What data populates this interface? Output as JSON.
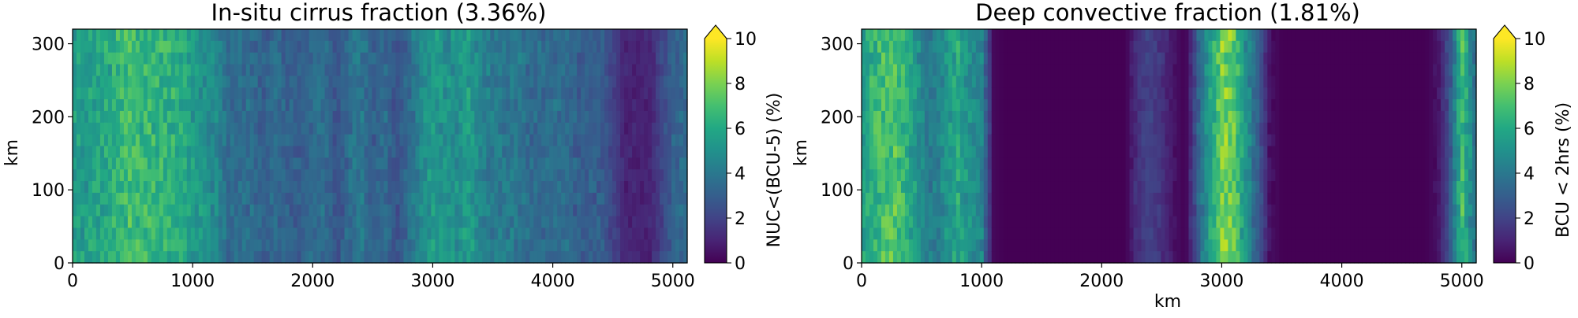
{
  "chart_data": [
    {
      "type": "heatmap",
      "title": "In-situ cirrus fraction (3.36%)",
      "xlabel": "",
      "ylabel": "km",
      "xlim": [
        0,
        5120
      ],
      "ylim": [
        0,
        320
      ],
      "xticks": [
        "0",
        "1000",
        "2000",
        "3000",
        "4000",
        "5000"
      ],
      "yticks": [
        "0",
        "100",
        "200",
        "300"
      ],
      "colorbar": {
        "label": "NUC<(BCU-5) (%)",
        "range": [
          0,
          10
        ],
        "ticks": [
          "0",
          "2",
          "4",
          "6",
          "8",
          "10"
        ],
        "extend": "max",
        "colormap": "viridis"
      },
      "column_profile": {
        "x_km": [
          0,
          100,
          200,
          300,
          400,
          500,
          600,
          700,
          800,
          900,
          1000,
          1100,
          1200,
          1300,
          1400,
          1500,
          1600,
          1700,
          1800,
          1900,
          2000,
          2100,
          2200,
          2300,
          2400,
          2500,
          2600,
          2700,
          2800,
          2900,
          3000,
          3100,
          3200,
          3300,
          3400,
          3500,
          3600,
          3700,
          3800,
          3900,
          4000,
          4100,
          4200,
          4300,
          4400,
          4500,
          4600,
          4700,
          4800,
          4900,
          5000,
          5100
        ],
        "values": [
          5.5,
          5.5,
          5.8,
          6.0,
          6.5,
          7.0,
          6.5,
          6.5,
          6.5,
          6.0,
          5.5,
          5.0,
          4.5,
          3.5,
          3.5,
          3.5,
          3.0,
          3.5,
          3.0,
          3.0,
          3.5,
          3.5,
          2.5,
          3.5,
          4.0,
          3.0,
          3.5,
          2.5,
          3.5,
          4.5,
          5.5,
          5.0,
          5.0,
          5.5,
          4.5,
          4.0,
          4.0,
          4.0,
          3.5,
          3.5,
          3.5,
          3.5,
          3.0,
          3.0,
          3.0,
          2.0,
          1.0,
          1.0,
          1.0,
          2.0,
          3.0,
          3.5
        ]
      }
    },
    {
      "type": "heatmap",
      "title": "Deep convective fraction (1.81%)",
      "xlabel": "km",
      "ylabel": "km",
      "xlim": [
        0,
        5120
      ],
      "ylim": [
        0,
        320
      ],
      "xticks": [
        "0",
        "1000",
        "2000",
        "3000",
        "4000",
        "5000"
      ],
      "yticks": [
        "0",
        "100",
        "200",
        "300"
      ],
      "colorbar": {
        "label": "BCU < 2hrs (%)",
        "range": [
          0,
          10
        ],
        "ticks": [
          "0",
          "2",
          "4",
          "6",
          "8",
          "10"
        ],
        "extend": "max",
        "colormap": "viridis"
      },
      "column_profile": {
        "x_km": [
          0,
          100,
          200,
          300,
          400,
          500,
          600,
          700,
          800,
          900,
          1000,
          1100,
          1200,
          1300,
          1400,
          1500,
          1600,
          1700,
          1800,
          1900,
          2000,
          2100,
          2200,
          2300,
          2400,
          2500,
          2600,
          2700,
          2800,
          2900,
          3000,
          3100,
          3200,
          3300,
          3400,
          3500,
          3600,
          3700,
          3800,
          3900,
          4000,
          4100,
          4200,
          4300,
          4400,
          4500,
          4600,
          4700,
          4800,
          4900,
          5000,
          5100
        ],
        "values": [
          5.5,
          6.5,
          7.0,
          7.0,
          6.0,
          4.5,
          4.0,
          5.0,
          6.0,
          5.0,
          4.5,
          0.2,
          0.0,
          0.0,
          0.0,
          0.0,
          0.0,
          0.0,
          0.0,
          0.0,
          0.0,
          0.0,
          0.0,
          1.5,
          2.0,
          1.5,
          0.5,
          0.0,
          3.0,
          5.5,
          8.0,
          7.5,
          5.0,
          3.0,
          0.5,
          0.0,
          0.0,
          0.0,
          0.0,
          0.0,
          0.0,
          0.0,
          0.0,
          0.0,
          0.0,
          0.0,
          0.0,
          0.0,
          0.5,
          2.5,
          7.0,
          4.0
        ]
      }
    }
  ]
}
